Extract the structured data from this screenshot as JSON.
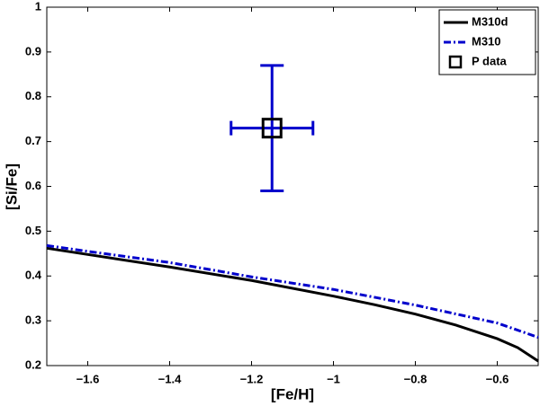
{
  "chart_data": {
    "type": "line",
    "xlabel": "[Fe/H]",
    "ylabel": "[Si/Fe]",
    "xlim": [
      -1.7,
      -0.5
    ],
    "ylim": [
      0.2,
      1
    ],
    "xticks": [
      {
        "value": -1.6,
        "label": "−1.6"
      },
      {
        "value": -1.4,
        "label": "−1.4"
      },
      {
        "value": -1.2,
        "label": "−1.2"
      },
      {
        "value": -1,
        "label": "−1"
      },
      {
        "value": -0.8,
        "label": "−0.8"
      },
      {
        "value": -0.6,
        "label": "−0.6"
      }
    ],
    "yticks": [
      0.2,
      0.3,
      0.4,
      0.5,
      0.6,
      0.7,
      0.8,
      0.9,
      1
    ],
    "legend": "upper right",
    "series": [
      {
        "name": "M310d",
        "color": "#000000",
        "style": "solid",
        "x": [
          -1.7,
          -1.6,
          -1.4,
          -1.2,
          -1.0,
          -0.9,
          -0.8,
          -0.7,
          -0.6,
          -0.55,
          -0.5
        ],
        "values": [
          0.462,
          0.448,
          0.42,
          0.39,
          0.355,
          0.336,
          0.315,
          0.29,
          0.26,
          0.24,
          0.21
        ]
      },
      {
        "name": "M310",
        "color": "#0000cc",
        "style": "dashdot",
        "x": [
          -1.7,
          -1.6,
          -1.4,
          -1.2,
          -1.0,
          -0.8,
          -0.6,
          -0.5
        ],
        "values": [
          0.468,
          0.455,
          0.43,
          0.398,
          0.37,
          0.335,
          0.295,
          0.263
        ]
      },
      {
        "name": "P data",
        "type": "errorbar",
        "color": "#0000cc",
        "marker_color": "#000000",
        "x": [
          -1.15
        ],
        "values": [
          0.73
        ],
        "xerr": [
          0.1
        ],
        "yerr": [
          0.14
        ]
      }
    ]
  }
}
